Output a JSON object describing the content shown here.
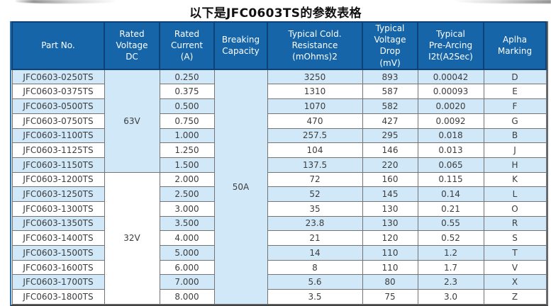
{
  "page": {
    "title": "以下是JFC0603TS的参数表格"
  },
  "colors": {
    "page_bg": "#FFFFFF",
    "title_text": "#111111",
    "header_bg": "#1565A8",
    "header_border": "#0E4175",
    "header_text": "#FFFFFF",
    "row_bg": "#FFFFFF",
    "row_alt_bg": "#D0E8F8",
    "cell_border": "#737373",
    "cell_text": "#3D3D3D",
    "outer_left_border": "#2E74B5",
    "outer_right_border": "#63666A",
    "outer_bottom_border": "#434343"
  },
  "table": {
    "headers": [
      {
        "id": "part_no",
        "label": "Part No."
      },
      {
        "id": "rated_voltage",
        "label": "Rated\nVoltage\nDC"
      },
      {
        "id": "rated_current",
        "label": "Rated\nCurrent\n(A)"
      },
      {
        "id": "breaking_capacity",
        "label": "Breaking\nCapacity"
      },
      {
        "id": "cold_resistance",
        "label": "Typical Cold.\nResistance\n(mOhms)2"
      },
      {
        "id": "voltage_drop",
        "label": "Typical\nVoltage Drop\n(mV)"
      },
      {
        "id": "pre_arcing",
        "label": "Typical\nPre-Arcing\nI2t(A2Sec)"
      },
      {
        "id": "alpha_marking",
        "label": "Aplha\nMarking"
      }
    ],
    "merged_cells": {
      "voltage_groups": [
        {
          "label": "63V",
          "row_start": 1,
          "row_span": 7,
          "shade": "blue"
        },
        {
          "label": "32V",
          "row_start": 8,
          "row_span": 9,
          "shade": "white"
        }
      ],
      "breaking_capacity": {
        "label": "50A",
        "row_start": 1,
        "row_span": 16,
        "shade": "blue"
      }
    },
    "rows": [
      {
        "part_no": "JFC0603-0250TS",
        "current": "0.250",
        "resistance": "3250",
        "voltage_drop": "893",
        "pre_arcing": "0.00042",
        "marking": "D"
      },
      {
        "part_no": "JFC0603-0375TS",
        "current": "0.375",
        "resistance": "1310",
        "voltage_drop": "587",
        "pre_arcing": "0.00093",
        "marking": "E"
      },
      {
        "part_no": "JFC0603-0500TS",
        "current": "0.500",
        "resistance": "1070",
        "voltage_drop": "582",
        "pre_arcing": "0.0020",
        "marking": "F"
      },
      {
        "part_no": "JFC0603-0750TS",
        "current": "0.750",
        "resistance": "470",
        "voltage_drop": "427",
        "pre_arcing": "0.0092",
        "marking": "G"
      },
      {
        "part_no": "JFC0603-1100TS",
        "current": "1.000",
        "resistance": "257.5",
        "voltage_drop": "295",
        "pre_arcing": "0.018",
        "marking": "B"
      },
      {
        "part_no": "JFC0603-1125TS",
        "current": "1.250",
        "resistance": "104",
        "voltage_drop": "146",
        "pre_arcing": "0.013",
        "marking": "J"
      },
      {
        "part_no": "JFC0603-1150TS",
        "current": "1.500",
        "resistance": "137.5",
        "voltage_drop": "220",
        "pre_arcing": "0.065",
        "marking": "H"
      },
      {
        "part_no": "JFC0603-1200TS",
        "current": "2.000",
        "resistance": "72",
        "voltage_drop": "160",
        "pre_arcing": "0.115",
        "marking": "K"
      },
      {
        "part_no": "JFC0603-1250TS",
        "current": "2.500",
        "resistance": "52",
        "voltage_drop": "145",
        "pre_arcing": "0.14",
        "marking": "L"
      },
      {
        "part_no": "JFC0603-1300TS",
        "current": "3.000",
        "resistance": "35",
        "voltage_drop": "130",
        "pre_arcing": "0.21",
        "marking": "O"
      },
      {
        "part_no": "JFC0603-1350TS",
        "current": "3.500",
        "resistance": "23.8",
        "voltage_drop": "130",
        "pre_arcing": "0.55",
        "marking": "R"
      },
      {
        "part_no": "JFC0603-1400TS",
        "current": "4.000",
        "resistance": "21",
        "voltage_drop": "120",
        "pre_arcing": "0.52",
        "marking": "S"
      },
      {
        "part_no": "JFC0603-1500TS",
        "current": "5.000",
        "resistance": "14",
        "voltage_drop": "110",
        "pre_arcing": "1.2",
        "marking": "T"
      },
      {
        "part_no": "JFC0603-1600TS",
        "current": "6.000",
        "resistance": "8",
        "voltage_drop": "110",
        "pre_arcing": "1.7",
        "marking": "V"
      },
      {
        "part_no": "JFC0603-1700TS",
        "current": "7.000",
        "resistance": "5.6",
        "voltage_drop": "80",
        "pre_arcing": "2.3",
        "marking": "X"
      },
      {
        "part_no": "JFC0603-1800TS",
        "current": "8.000",
        "resistance": "3.5",
        "voltage_drop": "75",
        "pre_arcing": "3.0",
        "marking": "Z"
      }
    ]
  }
}
